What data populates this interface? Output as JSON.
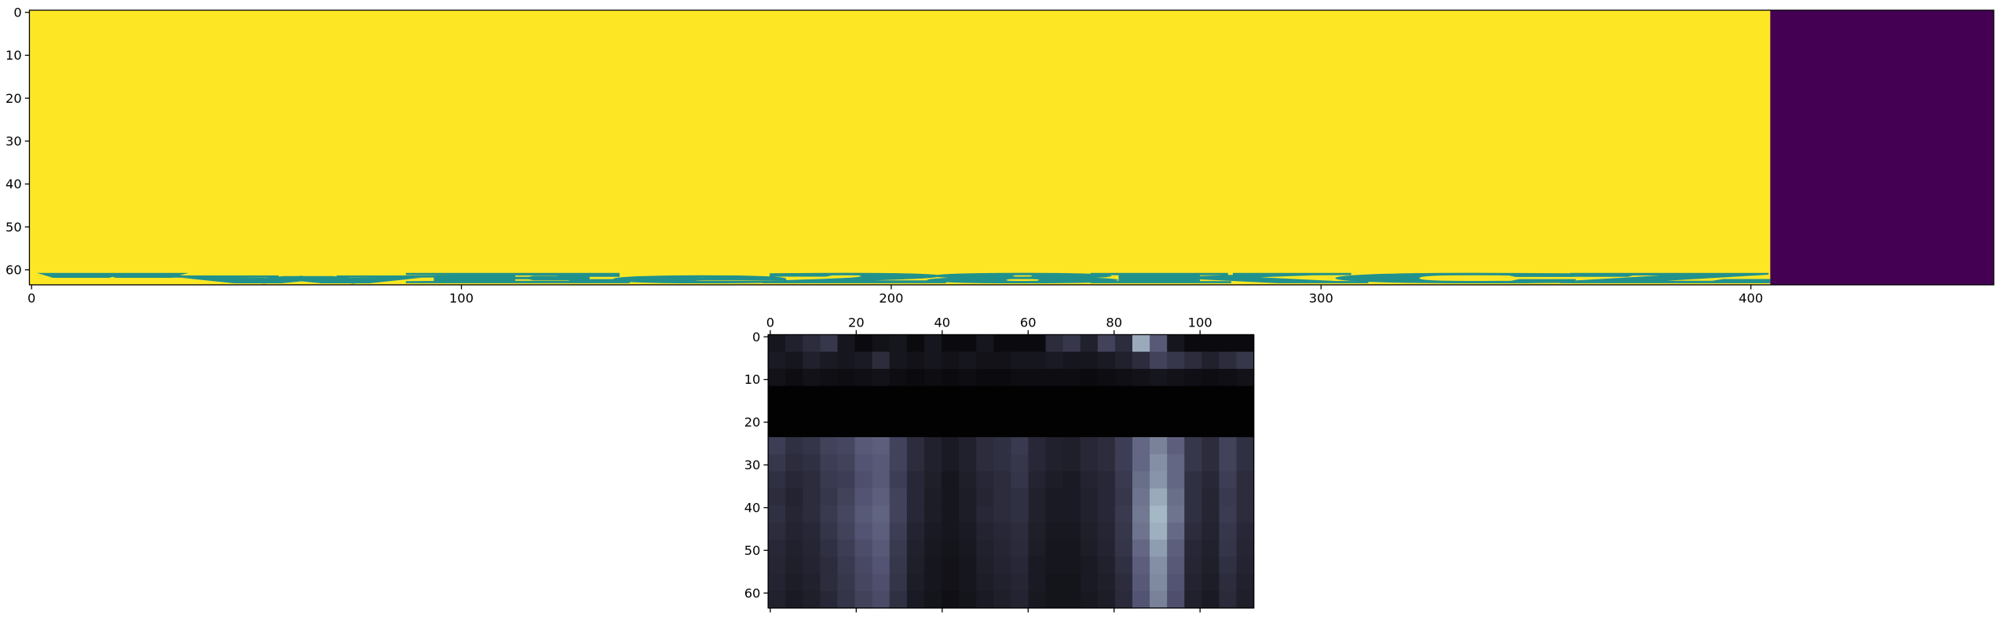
{
  "chart_data": [
    {
      "type": "image",
      "image_text": "\"wEe28KCZ",
      "background": "#fde725",
      "text_color": "#440154",
      "pad_color": "#440154",
      "text_xlim": [
        -0.5,
        404.5
      ],
      "xlim": [
        -0.5,
        456.5
      ],
      "ylim": [
        63.5,
        -0.5
      ],
      "xticks": [
        0,
        100,
        200,
        300,
        400
      ],
      "yticks": [
        0,
        10,
        20,
        30,
        40,
        50,
        60
      ],
      "xtick_position": "bottom"
    },
    {
      "type": "heatmap",
      "colormap": "bone",
      "xlim": [
        -0.5,
        112.5
      ],
      "ylim": [
        63.5,
        -0.5
      ],
      "xticks": [
        0,
        20,
        40,
        60,
        80,
        100
      ],
      "yticks": [
        0,
        10,
        20,
        30,
        40,
        50,
        60
      ],
      "xtick_position": "top",
      "values": [
        [
          0.1,
          0.15,
          0.2,
          0.25,
          0.1,
          0.05,
          0.08,
          0.1,
          0.05,
          0.1,
          0.05,
          0.05,
          0.1,
          0.05,
          0.05,
          0.05,
          0.2,
          0.25,
          0.15,
          0.3,
          0.2,
          0.7,
          0.4,
          0.1,
          0.05,
          0.05,
          0.05,
          0.05
        ],
        [
          0.12,
          0.1,
          0.15,
          0.12,
          0.1,
          0.12,
          0.2,
          0.1,
          0.08,
          0.1,
          0.08,
          0.1,
          0.08,
          0.08,
          0.1,
          0.1,
          0.12,
          0.1,
          0.1,
          0.12,
          0.15,
          0.2,
          0.3,
          0.25,
          0.2,
          0.15,
          0.2,
          0.25
        ],
        [
          0.08,
          0.06,
          0.08,
          0.07,
          0.06,
          0.07,
          0.08,
          0.06,
          0.05,
          0.06,
          0.05,
          0.06,
          0.05,
          0.05,
          0.06,
          0.06,
          0.06,
          0.06,
          0.05,
          0.06,
          0.07,
          0.08,
          0.1,
          0.08,
          0.07,
          0.06,
          0.07,
          0.08
        ],
        [
          0.01,
          0.01,
          0.01,
          0.01,
          0.01,
          0.01,
          0.01,
          0.01,
          0.01,
          0.01,
          0.01,
          0.01,
          0.01,
          0.01,
          0.01,
          0.01,
          0.01,
          0.01,
          0.01,
          0.01,
          0.01,
          0.01,
          0.01,
          0.01,
          0.01,
          0.01,
          0.01,
          0.01
        ],
        [
          0.01,
          0.01,
          0.01,
          0.01,
          0.01,
          0.01,
          0.01,
          0.01,
          0.01,
          0.01,
          0.01,
          0.01,
          0.01,
          0.01,
          0.01,
          0.01,
          0.01,
          0.01,
          0.01,
          0.01,
          0.01,
          0.01,
          0.01,
          0.01,
          0.01,
          0.01,
          0.01,
          0.01
        ],
        [
          0.01,
          0.01,
          0.01,
          0.01,
          0.01,
          0.01,
          0.01,
          0.01,
          0.01,
          0.01,
          0.01,
          0.01,
          0.01,
          0.01,
          0.01,
          0.01,
          0.01,
          0.01,
          0.01,
          0.01,
          0.01,
          0.01,
          0.01,
          0.01,
          0.01,
          0.01,
          0.01,
          0.01
        ],
        [
          0.28,
          0.22,
          0.24,
          0.3,
          0.32,
          0.4,
          0.42,
          0.3,
          0.2,
          0.15,
          0.12,
          0.15,
          0.2,
          0.22,
          0.26,
          0.18,
          0.15,
          0.14,
          0.18,
          0.2,
          0.28,
          0.45,
          0.55,
          0.42,
          0.25,
          0.2,
          0.3,
          0.22
        ],
        [
          0.25,
          0.2,
          0.22,
          0.28,
          0.3,
          0.38,
          0.4,
          0.3,
          0.2,
          0.15,
          0.12,
          0.15,
          0.2,
          0.22,
          0.25,
          0.18,
          0.15,
          0.14,
          0.18,
          0.2,
          0.28,
          0.45,
          0.6,
          0.45,
          0.25,
          0.2,
          0.3,
          0.22
        ],
        [
          0.22,
          0.18,
          0.2,
          0.26,
          0.28,
          0.36,
          0.4,
          0.28,
          0.18,
          0.14,
          0.1,
          0.14,
          0.18,
          0.2,
          0.24,
          0.16,
          0.13,
          0.12,
          0.16,
          0.18,
          0.26,
          0.48,
          0.62,
          0.45,
          0.22,
          0.18,
          0.28,
          0.2
        ],
        [
          0.2,
          0.16,
          0.2,
          0.25,
          0.3,
          0.38,
          0.42,
          0.3,
          0.18,
          0.13,
          0.1,
          0.13,
          0.17,
          0.2,
          0.22,
          0.15,
          0.12,
          0.12,
          0.15,
          0.18,
          0.25,
          0.5,
          0.7,
          0.48,
          0.22,
          0.17,
          0.26,
          0.2
        ],
        [
          0.22,
          0.17,
          0.2,
          0.26,
          0.32,
          0.4,
          0.44,
          0.3,
          0.18,
          0.13,
          0.1,
          0.13,
          0.18,
          0.2,
          0.22,
          0.15,
          0.12,
          0.12,
          0.15,
          0.18,
          0.26,
          0.52,
          0.75,
          0.5,
          0.22,
          0.17,
          0.27,
          0.2
        ],
        [
          0.2,
          0.16,
          0.18,
          0.24,
          0.3,
          0.38,
          0.42,
          0.28,
          0.16,
          0.12,
          0.1,
          0.12,
          0.16,
          0.18,
          0.2,
          0.14,
          0.11,
          0.11,
          0.14,
          0.17,
          0.25,
          0.5,
          0.72,
          0.46,
          0.2,
          0.16,
          0.25,
          0.18
        ],
        [
          0.18,
          0.15,
          0.17,
          0.22,
          0.28,
          0.35,
          0.4,
          0.26,
          0.15,
          0.11,
          0.09,
          0.11,
          0.15,
          0.17,
          0.19,
          0.13,
          0.1,
          0.1,
          0.13,
          0.16,
          0.24,
          0.45,
          0.65,
          0.42,
          0.18,
          0.15,
          0.24,
          0.17
        ],
        [
          0.17,
          0.14,
          0.16,
          0.2,
          0.26,
          0.33,
          0.38,
          0.25,
          0.14,
          0.1,
          0.08,
          0.1,
          0.14,
          0.16,
          0.18,
          0.12,
          0.1,
          0.1,
          0.12,
          0.15,
          0.22,
          0.42,
          0.6,
          0.4,
          0.17,
          0.14,
          0.22,
          0.16
        ],
        [
          0.16,
          0.13,
          0.15,
          0.2,
          0.25,
          0.32,
          0.36,
          0.24,
          0.13,
          0.1,
          0.08,
          0.1,
          0.13,
          0.15,
          0.17,
          0.12,
          0.09,
          0.09,
          0.12,
          0.14,
          0.2,
          0.4,
          0.58,
          0.38,
          0.16,
          0.13,
          0.2,
          0.15
        ],
        [
          0.15,
          0.12,
          0.14,
          0.18,
          0.24,
          0.3,
          0.34,
          0.22,
          0.12,
          0.09,
          0.07,
          0.09,
          0.12,
          0.14,
          0.16,
          0.11,
          0.09,
          0.09,
          0.11,
          0.13,
          0.19,
          0.38,
          0.55,
          0.36,
          0.15,
          0.12,
          0.19,
          0.14
        ]
      ]
    }
  ]
}
